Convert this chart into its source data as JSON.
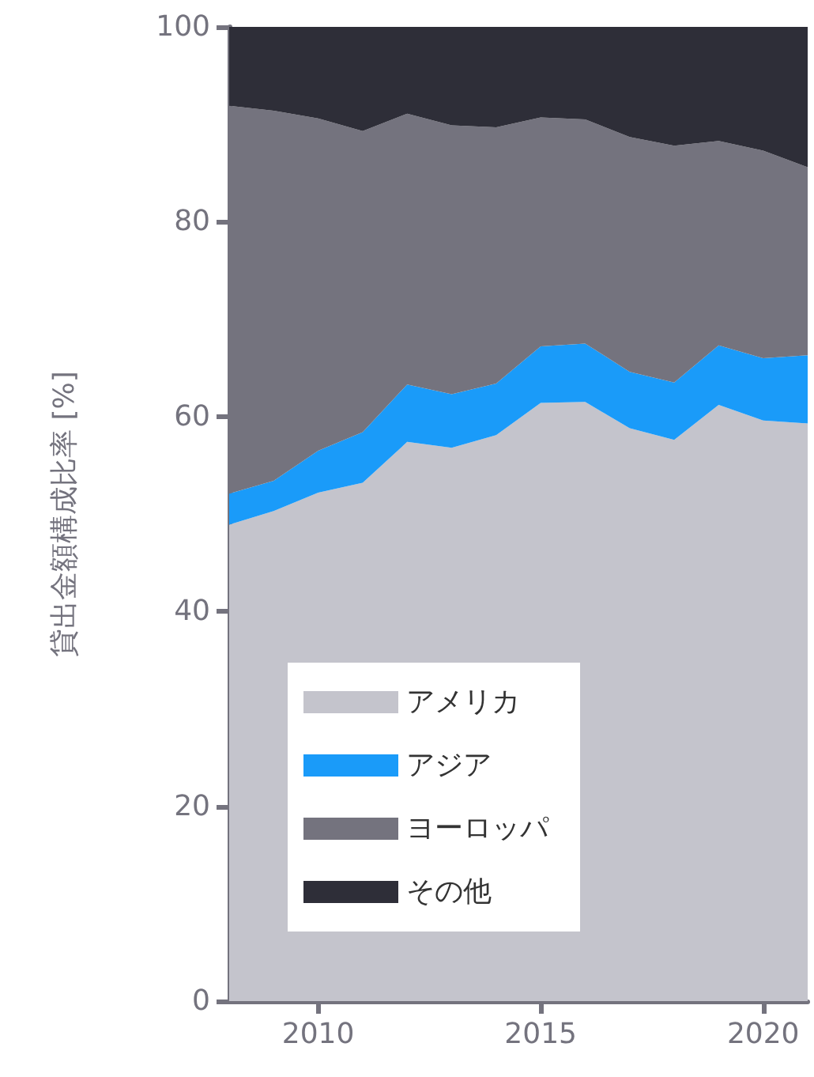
{
  "chart_data": {
    "type": "area",
    "stacked": true,
    "ylabel": "貸出金額構成比率 [%]",
    "x": [
      2008,
      2009,
      2010,
      2011,
      2012,
      2013,
      2014,
      2015,
      2016,
      2017,
      2018,
      2019,
      2020,
      2021
    ],
    "series": [
      {
        "name": "アメリカ",
        "color": "#c4c4cc",
        "values": [
          48.9,
          50.3,
          52.2,
          53.2,
          57.4,
          56.8,
          58.1,
          61.4,
          61.5,
          58.8,
          57.6,
          61.2,
          59.6,
          59.3
        ]
      },
      {
        "name": "アジア",
        "color": "#1a9bf9",
        "values": [
          3.2,
          3.1,
          4.3,
          5.2,
          5.9,
          5.5,
          5.3,
          5.8,
          6.0,
          5.8,
          5.9,
          6.1,
          6.4,
          7.0
        ]
      },
      {
        "name": "ヨーロッパ",
        "color": "#74737e",
        "values": [
          39.8,
          38.0,
          34.1,
          30.9,
          27.8,
          27.6,
          26.3,
          23.5,
          23.0,
          24.1,
          24.3,
          21.0,
          21.3,
          19.3
        ]
      },
      {
        "name": "その他",
        "color": "#2e2e38",
        "values": [
          8.1,
          8.6,
          9.4,
          10.7,
          8.9,
          10.1,
          10.3,
          9.3,
          9.5,
          11.3,
          12.2,
          11.7,
          12.7,
          14.4
        ]
      }
    ],
    "xlim": [
      2008,
      2021
    ],
    "xticks": [
      2010,
      2015,
      2020
    ],
    "ylim": [
      0,
      100
    ],
    "yticks": [
      0,
      20,
      40,
      60,
      80,
      100
    ],
    "legend": "bottom left"
  }
}
